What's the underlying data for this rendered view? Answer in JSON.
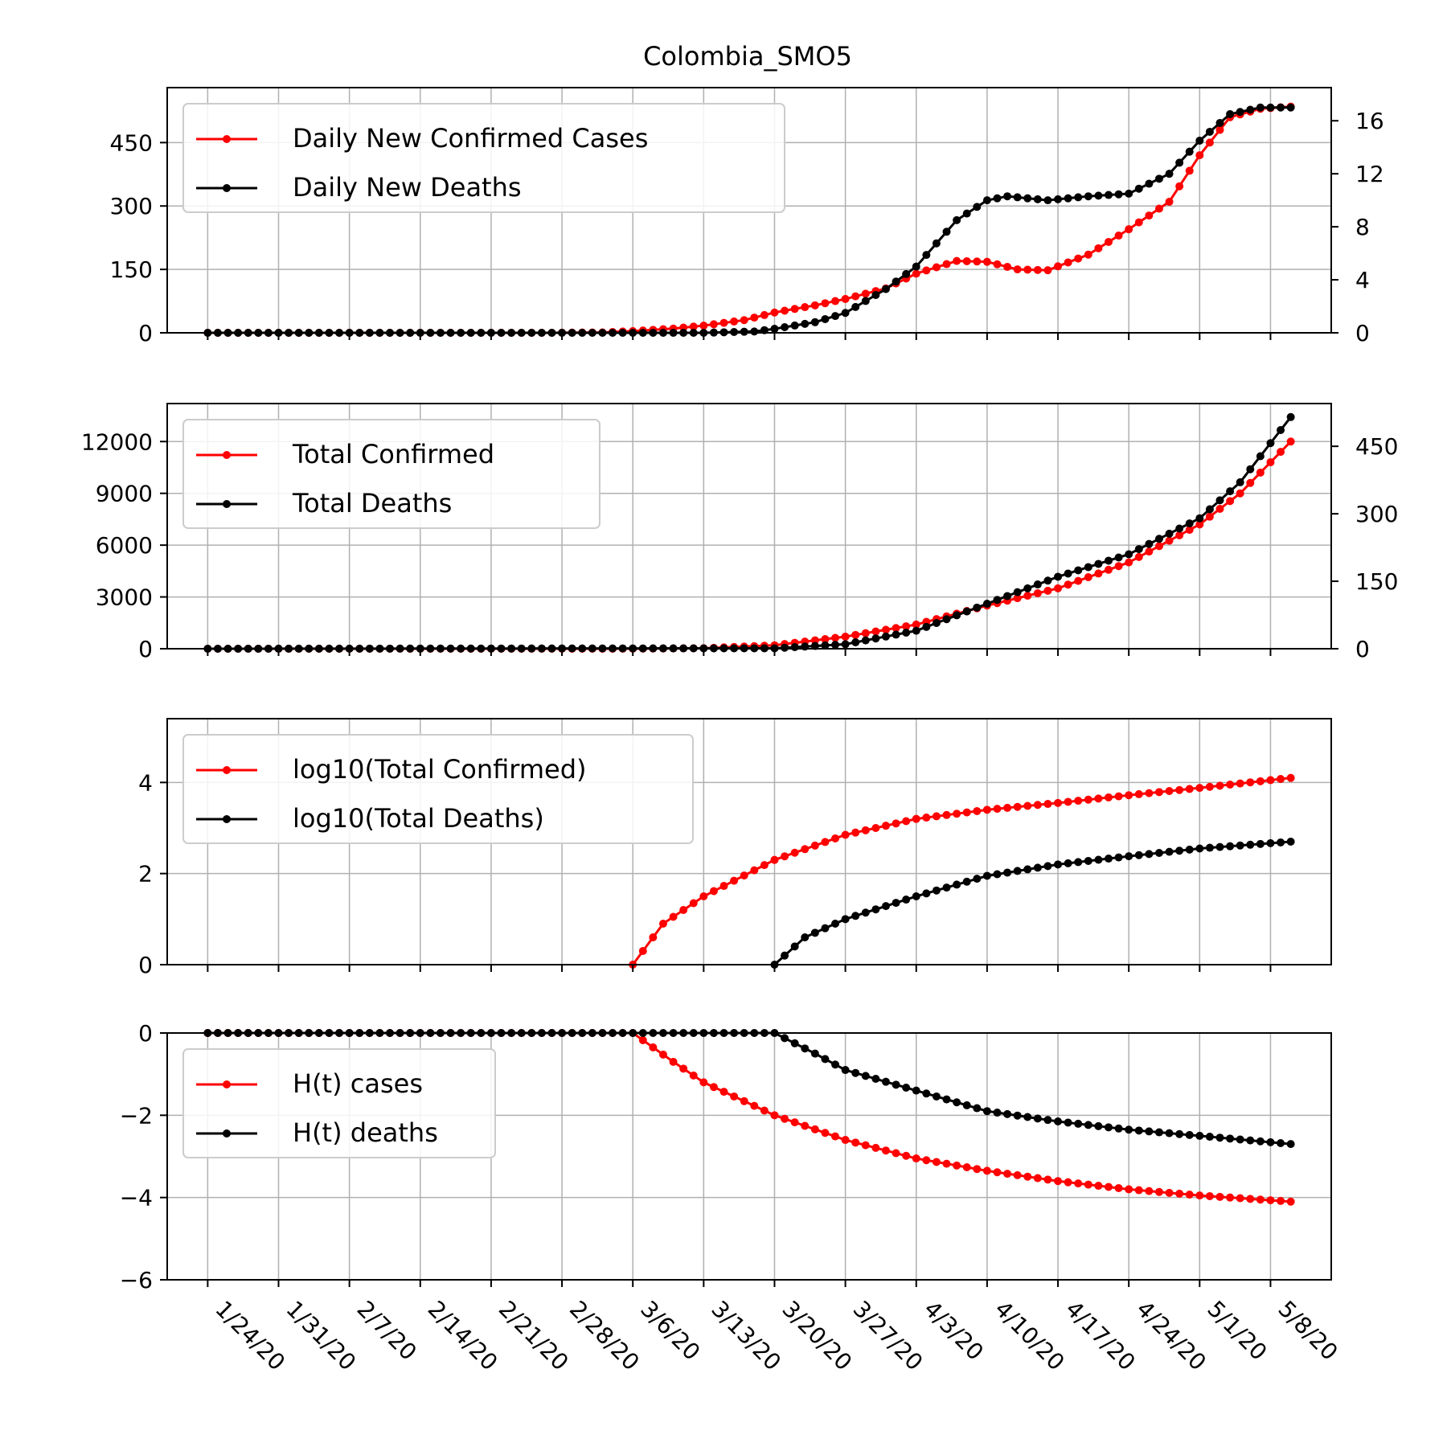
{
  "figure": {
    "title": "Colombia_SMO5"
  },
  "x_dates": [
    "1/24/20",
    "1/31/20",
    "2/7/20",
    "2/14/20",
    "2/21/20",
    "2/28/20",
    "3/6/20",
    "3/13/20",
    "3/20/20",
    "3/27/20",
    "4/3/20",
    "4/10/20",
    "4/17/20",
    "4/24/20",
    "5/1/20",
    "5/8/20"
  ],
  "colors": {
    "cases": "#ff0000",
    "deaths": "#000000",
    "grid": "#b0b0b0"
  },
  "chart_data": [
    {
      "type": "line",
      "title": "Colombia_SMO5",
      "x": {
        "start": "1/24/20",
        "end": "5/10/20"
      },
      "ylim_left": [
        0,
        580
      ],
      "yticks_left": [
        0,
        150,
        300,
        450
      ],
      "ylim_right": [
        0,
        18.5
      ],
      "yticks_right": [
        0,
        4,
        8,
        12,
        16
      ],
      "grid": true,
      "legend": "upper left",
      "series": [
        {
          "name": "Daily New Confirmed Cases",
          "color": "#ff0000",
          "axis": "left",
          "keys": [
            [
              "1/24/20",
              0
            ],
            [
              "2/27/20",
              0
            ],
            [
              "3/3/20",
              1
            ],
            [
              "3/6/20",
              4
            ],
            [
              "3/10/20",
              10
            ],
            [
              "3/13/20",
              17
            ],
            [
              "3/17/20",
              30
            ],
            [
              "3/20/20",
              48
            ],
            [
              "3/24/20",
              65
            ],
            [
              "3/27/20",
              80
            ],
            [
              "3/31/20",
              105
            ],
            [
              "4/3/20",
              140
            ],
            [
              "4/7/20",
              170
            ],
            [
              "4/10/20",
              168
            ],
            [
              "4/13/20",
              150
            ],
            [
              "4/16/20",
              148
            ],
            [
              "4/20/20",
              185
            ],
            [
              "4/24/20",
              245
            ],
            [
              "4/28/20",
              310
            ],
            [
              "5/1/20",
              420
            ],
            [
              "5/4/20",
              510
            ],
            [
              "5/7/20",
              530
            ],
            [
              "5/10/20",
              535
            ]
          ]
        },
        {
          "name": "Daily New Deaths",
          "color": "#000000",
          "axis": "right",
          "keys": [
            [
              "1/24/20",
              0
            ],
            [
              "3/13/20",
              0
            ],
            [
              "3/18/20",
              0.1
            ],
            [
              "3/20/20",
              0.3
            ],
            [
              "3/24/20",
              0.8
            ],
            [
              "3/27/20",
              1.5
            ],
            [
              "3/31/20",
              3.3
            ],
            [
              "4/3/20",
              5
            ],
            [
              "4/7/20",
              8.5
            ],
            [
              "4/10/20",
              10
            ],
            [
              "4/12/20",
              10.3
            ],
            [
              "4/16/20",
              10
            ],
            [
              "4/20/20",
              10.3
            ],
            [
              "4/24/20",
              10.5
            ],
            [
              "4/28/20",
              12
            ],
            [
              "5/1/20",
              14.5
            ],
            [
              "5/4/20",
              16.5
            ],
            [
              "5/7/20",
              17
            ],
            [
              "5/10/20",
              17
            ]
          ]
        }
      ]
    },
    {
      "type": "line",
      "x": {
        "start": "1/24/20",
        "end": "5/10/20"
      },
      "ylim_left": [
        0,
        14200
      ],
      "yticks_left": [
        0,
        3000,
        6000,
        9000,
        12000
      ],
      "ylim_right": [
        0,
        545
      ],
      "yticks_right": [
        0,
        150,
        300,
        450
      ],
      "grid": true,
      "legend": "upper left",
      "series": [
        {
          "name": "Total Confirmed",
          "color": "#ff0000",
          "axis": "left",
          "keys": [
            [
              "1/24/20",
              0
            ],
            [
              "3/6/20",
              3
            ],
            [
              "3/13/20",
              30
            ],
            [
              "3/20/20",
              200
            ],
            [
              "3/27/20",
              700
            ],
            [
              "4/3/20",
              1400
            ],
            [
              "4/10/20",
              2500
            ],
            [
              "4/17/20",
              3500
            ],
            [
              "4/24/20",
              5000
            ],
            [
              "5/1/20",
              7200
            ],
            [
              "5/5/20",
              9000
            ],
            [
              "5/10/20",
              12000
            ]
          ]
        },
        {
          "name": "Total Deaths",
          "color": "#000000",
          "axis": "right",
          "keys": [
            [
              "1/24/20",
              0
            ],
            [
              "3/20/20",
              1
            ],
            [
              "3/27/20",
              10
            ],
            [
              "4/3/20",
              40
            ],
            [
              "4/10/20",
              100
            ],
            [
              "4/17/20",
              160
            ],
            [
              "4/24/20",
              210
            ],
            [
              "5/1/20",
              290
            ],
            [
              "5/5/20",
              370
            ],
            [
              "5/10/20",
              515
            ]
          ]
        }
      ]
    },
    {
      "type": "line",
      "x": {
        "start": "1/24/20",
        "end": "5/10/20"
      },
      "ylim_left": [
        0,
        5.4
      ],
      "yticks_left": [
        0,
        2,
        4
      ],
      "grid": true,
      "legend": "upper left",
      "series": [
        {
          "name": "log10(Total Confirmed)",
          "color": "#ff0000",
          "axis": "left",
          "keys": [
            [
              "3/6/20",
              0
            ],
            [
              "3/9/20",
              0.9
            ],
            [
              "3/13/20",
              1.5
            ],
            [
              "3/20/20",
              2.3
            ],
            [
              "3/27/20",
              2.85
            ],
            [
              "4/3/20",
              3.2
            ],
            [
              "4/10/20",
              3.4
            ],
            [
              "4/17/20",
              3.55
            ],
            [
              "4/24/20",
              3.72
            ],
            [
              "5/1/20",
              3.88
            ],
            [
              "5/10/20",
              4.1
            ]
          ]
        },
        {
          "name": "log10(Total Deaths)",
          "color": "#000000",
          "axis": "left",
          "keys": [
            [
              "3/20/20",
              0
            ],
            [
              "3/23/20",
              0.6
            ],
            [
              "3/27/20",
              1.0
            ],
            [
              "4/3/20",
              1.5
            ],
            [
              "4/10/20",
              1.95
            ],
            [
              "4/17/20",
              2.2
            ],
            [
              "4/24/20",
              2.38
            ],
            [
              "5/1/20",
              2.55
            ],
            [
              "5/10/20",
              2.7
            ]
          ]
        }
      ]
    },
    {
      "type": "line",
      "x": {
        "start": "1/24/20",
        "end": "5/10/20"
      },
      "ylim_left": [
        -6,
        0
      ],
      "yticks_left": [
        0,
        -2,
        -4,
        -6
      ],
      "grid": true,
      "legend": "upper left",
      "series": [
        {
          "name": "H(t) cases",
          "color": "#ff0000",
          "axis": "left",
          "keys": [
            [
              "1/24/20",
              0
            ],
            [
              "3/6/20",
              0
            ],
            [
              "3/10/20",
              -0.7
            ],
            [
              "3/13/20",
              -1.2
            ],
            [
              "3/20/20",
              -2.0
            ],
            [
              "3/27/20",
              -2.6
            ],
            [
              "4/3/20",
              -3.05
            ],
            [
              "4/10/20",
              -3.35
            ],
            [
              "4/17/20",
              -3.6
            ],
            [
              "4/24/20",
              -3.8
            ],
            [
              "5/1/20",
              -3.95
            ],
            [
              "5/10/20",
              -4.1
            ]
          ]
        },
        {
          "name": "H(t) deaths",
          "color": "#000000",
          "axis": "left",
          "keys": [
            [
              "1/24/20",
              0
            ],
            [
              "3/13/20",
              0
            ],
            [
              "3/20/20",
              0
            ],
            [
              "3/24/20",
              -0.5
            ],
            [
              "3/27/20",
              -0.9
            ],
            [
              "4/3/20",
              -1.4
            ],
            [
              "4/10/20",
              -1.9
            ],
            [
              "4/17/20",
              -2.15
            ],
            [
              "4/24/20",
              -2.35
            ],
            [
              "5/1/20",
              -2.5
            ],
            [
              "5/10/20",
              -2.7
            ]
          ]
        }
      ]
    }
  ]
}
